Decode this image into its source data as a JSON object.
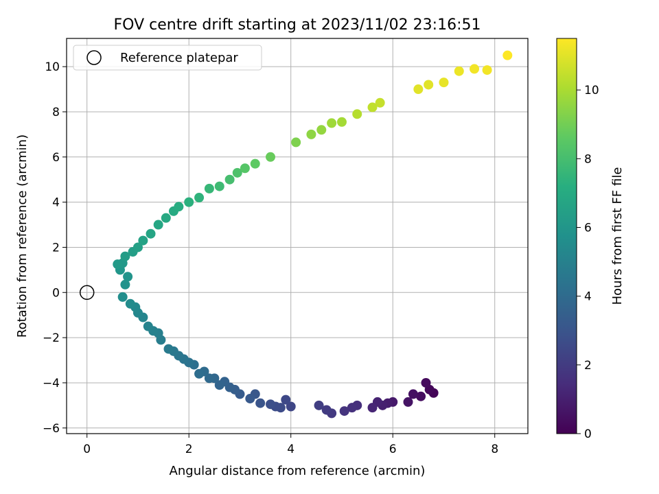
{
  "chart_data": {
    "type": "scatter",
    "title": "FOV centre drift starting at 2023/11/02 23:16:51",
    "xlabel": "Angular distance from reference (arcmin)",
    "ylabel": "Rotation from reference (arcmin)",
    "xlim": [
      -0.4,
      8.65
    ],
    "ylim": [
      -6.25,
      11.25
    ],
    "xticks": [
      0,
      2,
      4,
      6,
      8
    ],
    "yticks": [
      -6,
      -4,
      -2,
      0,
      2,
      4,
      6,
      8,
      10
    ],
    "grid": true,
    "legend": {
      "position": "top-left",
      "entries": [
        "Reference platepar"
      ]
    },
    "reference_point": {
      "x": 0,
      "y": 0,
      "marker": "open-circle",
      "color": "#000000"
    },
    "colorbar": {
      "label": "Hours from first FF file",
      "colormap": "viridis",
      "range": [
        0,
        11.5
      ],
      "ticks": [
        0,
        2,
        4,
        6,
        8,
        10
      ],
      "colors": [
        "#440154",
        "#472d7b",
        "#3b528b",
        "#2c728e",
        "#21918c",
        "#28ae80",
        "#5ec962",
        "#addc30",
        "#fde725"
      ]
    },
    "series": [
      {
        "marker": "filled-circle",
        "points": [
          [
            6.8,
            -4.45,
            0.1
          ],
          [
            6.72,
            -4.3,
            0.2
          ],
          [
            6.65,
            -4.0,
            0.3
          ],
          [
            6.55,
            -4.6,
            0.4
          ],
          [
            6.4,
            -4.5,
            0.5
          ],
          [
            6.3,
            -4.85,
            0.6
          ],
          [
            6.0,
            -4.85,
            0.8
          ],
          [
            5.9,
            -4.9,
            0.9
          ],
          [
            5.8,
            -5.0,
            1.0
          ],
          [
            5.7,
            -4.85,
            1.1
          ],
          [
            5.6,
            -5.1,
            1.2
          ],
          [
            5.3,
            -5.0,
            1.5
          ],
          [
            5.2,
            -5.1,
            1.6
          ],
          [
            5.05,
            -5.25,
            1.7
          ],
          [
            4.8,
            -5.35,
            1.9
          ],
          [
            4.7,
            -5.2,
            2.0
          ],
          [
            4.55,
            -5.0,
            2.1
          ],
          [
            4.0,
            -5.05,
            2.4
          ],
          [
            3.9,
            -4.75,
            2.5
          ],
          [
            3.8,
            -5.1,
            2.6
          ],
          [
            3.7,
            -5.05,
            2.7
          ],
          [
            3.6,
            -4.95,
            2.8
          ],
          [
            3.4,
            -4.9,
            3.0
          ],
          [
            3.3,
            -4.5,
            3.1
          ],
          [
            3.2,
            -4.7,
            3.2
          ],
          [
            3.0,
            -4.5,
            3.3
          ],
          [
            2.9,
            -4.3,
            3.4
          ],
          [
            2.8,
            -4.2,
            3.5
          ],
          [
            2.7,
            -3.95,
            3.6
          ],
          [
            2.6,
            -4.1,
            3.7
          ],
          [
            2.5,
            -3.8,
            3.8
          ],
          [
            2.4,
            -3.8,
            3.9
          ],
          [
            2.3,
            -3.5,
            4.0
          ],
          [
            2.2,
            -3.6,
            4.1
          ],
          [
            2.1,
            -3.2,
            4.2
          ],
          [
            2.0,
            -3.1,
            4.3
          ],
          [
            1.9,
            -2.95,
            4.4
          ],
          [
            1.8,
            -2.8,
            4.5
          ],
          [
            1.7,
            -2.6,
            4.6
          ],
          [
            1.6,
            -2.5,
            4.7
          ],
          [
            1.45,
            -2.1,
            4.8
          ],
          [
            1.4,
            -1.8,
            4.9
          ],
          [
            1.3,
            -1.7,
            5.0
          ],
          [
            1.2,
            -1.5,
            5.1
          ],
          [
            1.1,
            -1.1,
            5.2
          ],
          [
            1.0,
            -0.9,
            5.3
          ],
          [
            0.95,
            -0.65,
            5.4
          ],
          [
            0.85,
            -0.5,
            5.5
          ],
          [
            0.7,
            -0.2,
            5.6
          ],
          [
            0.75,
            0.35,
            5.8
          ],
          [
            0.8,
            0.7,
            5.9
          ],
          [
            0.65,
            1.0,
            6.0
          ],
          [
            0.7,
            1.3,
            6.1
          ],
          [
            0.6,
            1.25,
            6.2
          ],
          [
            0.75,
            1.6,
            6.3
          ],
          [
            0.9,
            1.8,
            6.4
          ],
          [
            1.0,
            2.0,
            6.5
          ],
          [
            1.1,
            2.3,
            6.6
          ],
          [
            1.25,
            2.6,
            6.7
          ],
          [
            1.4,
            3.0,
            6.8
          ],
          [
            1.55,
            3.3,
            6.9
          ],
          [
            1.7,
            3.6,
            7.0
          ],
          [
            1.8,
            3.8,
            7.1
          ],
          [
            2.0,
            4.0,
            7.3
          ],
          [
            2.2,
            4.2,
            7.4
          ],
          [
            2.4,
            4.6,
            7.6
          ],
          [
            2.6,
            4.7,
            7.8
          ],
          [
            2.8,
            5.0,
            8.0
          ],
          [
            2.95,
            5.3,
            8.2
          ],
          [
            3.1,
            5.5,
            8.4
          ],
          [
            3.3,
            5.7,
            8.6
          ],
          [
            3.6,
            6.0,
            8.8
          ],
          [
            4.1,
            6.65,
            9.2
          ],
          [
            4.4,
            7.0,
            9.5
          ],
          [
            4.6,
            7.2,
            9.6
          ],
          [
            4.8,
            7.5,
            9.8
          ],
          [
            5.0,
            7.55,
            9.9
          ],
          [
            5.3,
            7.9,
            10.2
          ],
          [
            5.6,
            8.2,
            10.4
          ],
          [
            5.75,
            8.4,
            10.5
          ],
          [
            6.5,
            9.0,
            11.0
          ],
          [
            6.7,
            9.2,
            11.0
          ],
          [
            7.0,
            9.3,
            11.1
          ],
          [
            7.3,
            9.8,
            11.2
          ],
          [
            7.6,
            9.9,
            11.3
          ],
          [
            7.85,
            9.85,
            11.3
          ],
          [
            8.25,
            10.5,
            11.5
          ]
        ]
      }
    ]
  }
}
